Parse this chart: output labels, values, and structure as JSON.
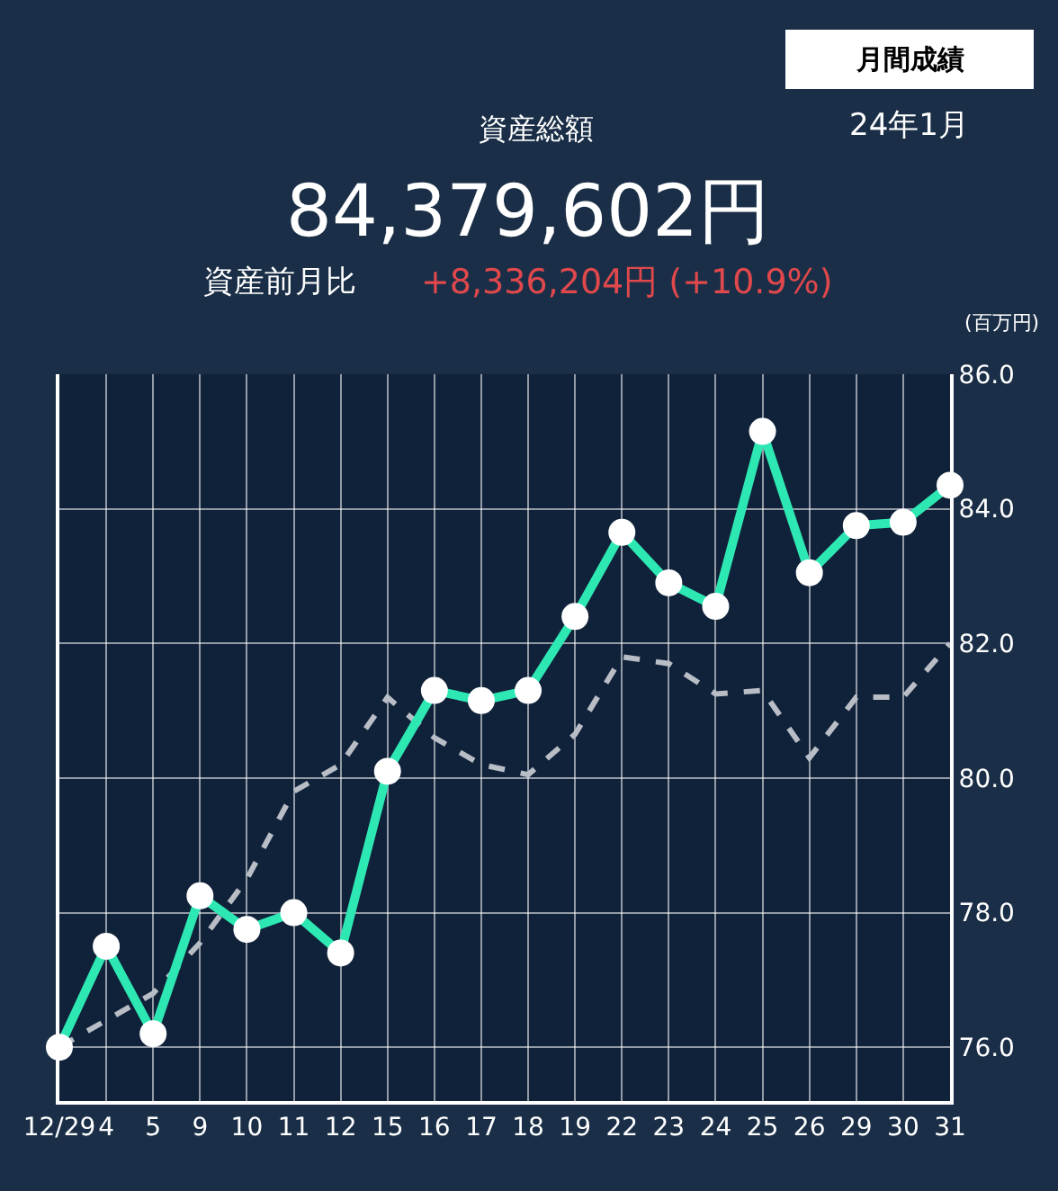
{
  "chart_data": {
    "type": "line",
    "ylabel": "(百万円)",
    "annotations": [
      "月間成績",
      "24年1月",
      "資産総額",
      "84,379,602円",
      "資産前月比",
      "+8,336,204円 (+10.9%)"
    ],
    "categories": [
      "12/29",
      "4",
      "5",
      "9",
      "10",
      "11",
      "12",
      "15",
      "16",
      "17",
      "18",
      "19",
      "22",
      "23",
      "24",
      "25",
      "26",
      "29",
      "30",
      "31"
    ],
    "series": [
      {
        "color": "#b9bec6",
        "line_style": "dashed",
        "marker": "none",
        "values": [
          76.0,
          76.4,
          76.8,
          77.55,
          78.5,
          79.8,
          80.2,
          81.2,
          80.6,
          80.2,
          80.05,
          80.65,
          81.8,
          81.7,
          81.25,
          81.3,
          80.3,
          81.2,
          81.2,
          82.0
        ]
      },
      {
        "color": "#2ee8b4",
        "line_style": "solid",
        "marker": "circle",
        "values": [
          76.0,
          77.5,
          76.2,
          78.25,
          77.75,
          78.0,
          77.4,
          80.1,
          81.3,
          81.15,
          81.3,
          82.4,
          83.65,
          82.9,
          82.55,
          85.15,
          83.05,
          83.75,
          83.8,
          84.35
        ]
      }
    ],
    "ylim": [
      75.2,
      86.0
    ],
    "yticks": [
      {
        "value": 76,
        "label": "76.0"
      },
      {
        "value": 78,
        "label": "78.0"
      },
      {
        "value": 80,
        "label": "80.0"
      },
      {
        "value": 82,
        "label": "82.0"
      },
      {
        "value": 84,
        "label": "84.0"
      },
      {
        "value": 86,
        "label": "86.0"
      }
    ],
    "grid": true
  }
}
